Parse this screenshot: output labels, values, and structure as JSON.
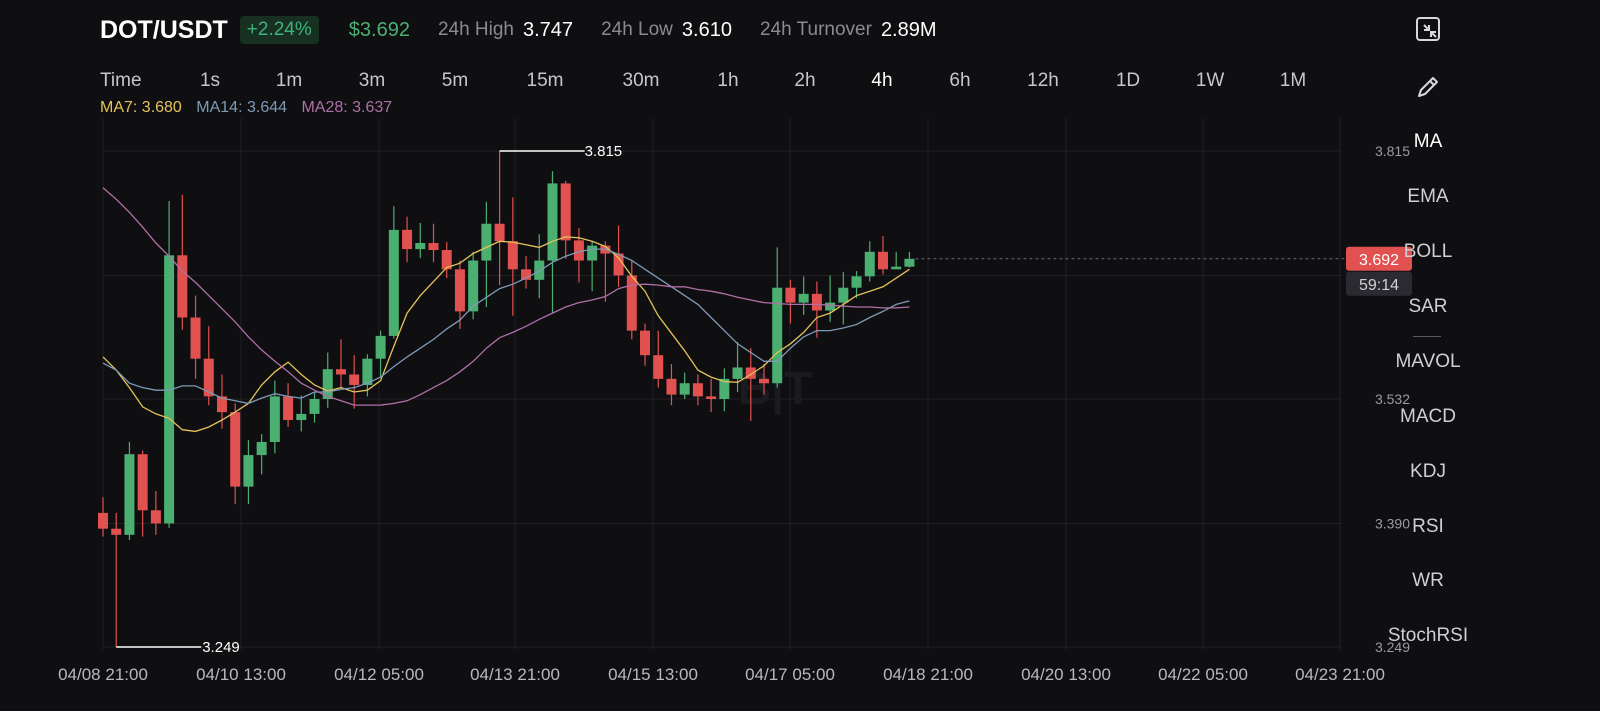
{
  "header": {
    "pair": "DOT/USDT",
    "change": "+2.24%",
    "price": "$3.692",
    "stats": [
      {
        "label": "24h High",
        "value": "3.747"
      },
      {
        "label": "24h Low",
        "value": "3.610"
      },
      {
        "label": "24h Turnover",
        "value": "2.89M"
      }
    ]
  },
  "intervals": [
    "Time",
    "1s",
    "1m",
    "3m",
    "5m",
    "15m",
    "30m",
    "1h",
    "2h",
    "4h",
    "6h",
    "12h",
    "1D",
    "1W",
    "1M"
  ],
  "active_interval": "4h",
  "ma_legend": {
    "ma7": "MA7: 3.680",
    "ma14": "MA14: 3.644",
    "ma28": "MA28: 3.637"
  },
  "sidebar": {
    "indicators": [
      "MA",
      "EMA",
      "BOLL",
      "SAR",
      "MAVOL",
      "MACD",
      "KDJ",
      "RSI",
      "WR",
      "StochRSI"
    ],
    "active": "MA",
    "icons": [
      "collapse-icon",
      "pencil-icon"
    ]
  },
  "colors": {
    "up": "#4caf72",
    "down": "#e0514f",
    "ma7": "#e4c25a",
    "ma14": "#7e9ab6",
    "ma28": "#b06fa6",
    "background": "#0f0f12"
  },
  "chart_data": {
    "type": "candlestick",
    "y_ticks": [
      "3.815",
      "3.532",
      "3.390",
      "3.249"
    ],
    "ylim": [
      3.249,
      3.815
    ],
    "x_ticks": [
      "04/08 21:00",
      "04/10 13:00",
      "04/12 05:00",
      "04/13 21:00",
      "04/15 13:00",
      "04/17 05:00",
      "04/18 21:00",
      "04/20 13:00",
      "04/22 05:00",
      "04/23 21:00"
    ],
    "current_price": "3.692",
    "countdown": "59:14",
    "annotations": {
      "high": "3.815",
      "low": "3.249"
    },
    "candles": [
      {
        "o": 3.402,
        "h": 3.42,
        "l": 3.375,
        "c": 3.384
      },
      {
        "o": 3.384,
        "h": 3.402,
        "l": 3.249,
        "c": 3.377
      },
      {
        "o": 3.377,
        "h": 3.483,
        "l": 3.371,
        "c": 3.469
      },
      {
        "o": 3.469,
        "h": 3.473,
        "l": 3.375,
        "c": 3.405
      },
      {
        "o": 3.405,
        "h": 3.427,
        "l": 3.377,
        "c": 3.39
      },
      {
        "o": 3.39,
        "h": 3.758,
        "l": 3.385,
        "c": 3.696
      },
      {
        "o": 3.696,
        "h": 3.765,
        "l": 3.611,
        "c": 3.625
      },
      {
        "o": 3.625,
        "h": 3.65,
        "l": 3.555,
        "c": 3.578
      },
      {
        "o": 3.578,
        "h": 3.615,
        "l": 3.525,
        "c": 3.535
      },
      {
        "o": 3.535,
        "h": 3.56,
        "l": 3.498,
        "c": 3.517
      },
      {
        "o": 3.517,
        "h": 3.527,
        "l": 3.412,
        "c": 3.432
      },
      {
        "o": 3.432,
        "h": 3.485,
        "l": 3.412,
        "c": 3.468
      },
      {
        "o": 3.468,
        "h": 3.492,
        "l": 3.446,
        "c": 3.483
      },
      {
        "o": 3.483,
        "h": 3.553,
        "l": 3.47,
        "c": 3.535
      },
      {
        "o": 3.535,
        "h": 3.55,
        "l": 3.5,
        "c": 3.508
      },
      {
        "o": 3.508,
        "h": 3.536,
        "l": 3.495,
        "c": 3.515
      },
      {
        "o": 3.515,
        "h": 3.54,
        "l": 3.505,
        "c": 3.532
      },
      {
        "o": 3.532,
        "h": 3.585,
        "l": 3.522,
        "c": 3.566
      },
      {
        "o": 3.566,
        "h": 3.6,
        "l": 3.545,
        "c": 3.56
      },
      {
        "o": 3.56,
        "h": 3.582,
        "l": 3.521,
        "c": 3.548
      },
      {
        "o": 3.548,
        "h": 3.583,
        "l": 3.535,
        "c": 3.578
      },
      {
        "o": 3.578,
        "h": 3.61,
        "l": 3.557,
        "c": 3.604
      },
      {
        "o": 3.604,
        "h": 3.752,
        "l": 3.601,
        "c": 3.725
      },
      {
        "o": 3.725,
        "h": 3.74,
        "l": 3.688,
        "c": 3.703
      },
      {
        "o": 3.703,
        "h": 3.733,
        "l": 3.693,
        "c": 3.71
      },
      {
        "o": 3.71,
        "h": 3.732,
        "l": 3.688,
        "c": 3.702
      },
      {
        "o": 3.702,
        "h": 3.711,
        "l": 3.67,
        "c": 3.68
      },
      {
        "o": 3.68,
        "h": 3.69,
        "l": 3.612,
        "c": 3.632
      },
      {
        "o": 3.632,
        "h": 3.7,
        "l": 3.623,
        "c": 3.69
      },
      {
        "o": 3.69,
        "h": 3.757,
        "l": 3.637,
        "c": 3.732
      },
      {
        "o": 3.732,
        "h": 3.815,
        "l": 3.662,
        "c": 3.712
      },
      {
        "o": 3.712,
        "h": 3.762,
        "l": 3.627,
        "c": 3.68
      },
      {
        "o": 3.68,
        "h": 3.695,
        "l": 3.658,
        "c": 3.668
      },
      {
        "o": 3.668,
        "h": 3.72,
        "l": 3.647,
        "c": 3.69
      },
      {
        "o": 3.69,
        "h": 3.792,
        "l": 3.63,
        "c": 3.778
      },
      {
        "o": 3.778,
        "h": 3.781,
        "l": 3.692,
        "c": 3.713
      },
      {
        "o": 3.713,
        "h": 3.727,
        "l": 3.665,
        "c": 3.69
      },
      {
        "o": 3.69,
        "h": 3.712,
        "l": 3.655,
        "c": 3.707
      },
      {
        "o": 3.707,
        "h": 3.712,
        "l": 3.643,
        "c": 3.698
      },
      {
        "o": 3.698,
        "h": 3.73,
        "l": 3.66,
        "c": 3.673
      },
      {
        "o": 3.673,
        "h": 3.69,
        "l": 3.6,
        "c": 3.61
      },
      {
        "o": 3.61,
        "h": 3.618,
        "l": 3.57,
        "c": 3.582
      },
      {
        "o": 3.582,
        "h": 3.61,
        "l": 3.545,
        "c": 3.555
      },
      {
        "o": 3.555,
        "h": 3.572,
        "l": 3.525,
        "c": 3.537
      },
      {
        "o": 3.537,
        "h": 3.562,
        "l": 3.532,
        "c": 3.55
      },
      {
        "o": 3.55,
        "h": 3.56,
        "l": 3.525,
        "c": 3.535
      },
      {
        "o": 3.535,
        "h": 3.555,
        "l": 3.517,
        "c": 3.532
      },
      {
        "o": 3.532,
        "h": 3.567,
        "l": 3.518,
        "c": 3.555
      },
      {
        "o": 3.555,
        "h": 3.597,
        "l": 3.54,
        "c": 3.568
      },
      {
        "o": 3.568,
        "h": 3.59,
        "l": 3.507,
        "c": 3.555
      },
      {
        "o": 3.555,
        "h": 3.572,
        "l": 3.537,
        "c": 3.55
      },
      {
        "o": 3.55,
        "h": 3.705,
        "l": 3.545,
        "c": 3.659
      },
      {
        "o": 3.659,
        "h": 3.668,
        "l": 3.618,
        "c": 3.642
      },
      {
        "o": 3.642,
        "h": 3.672,
        "l": 3.628,
        "c": 3.652
      },
      {
        "o": 3.652,
        "h": 3.666,
        "l": 3.602,
        "c": 3.633
      },
      {
        "o": 3.633,
        "h": 3.673,
        "l": 3.62,
        "c": 3.642
      },
      {
        "o": 3.642,
        "h": 3.677,
        "l": 3.617,
        "c": 3.659
      },
      {
        "o": 3.659,
        "h": 3.678,
        "l": 3.647,
        "c": 3.672
      },
      {
        "o": 3.672,
        "h": 3.712,
        "l": 3.666,
        "c": 3.7
      },
      {
        "o": 3.7,
        "h": 3.718,
        "l": 3.674,
        "c": 3.68
      },
      {
        "o": 3.68,
        "h": 3.7,
        "l": 3.68,
        "c": 3.683
      },
      {
        "o": 3.683,
        "h": 3.7,
        "l": 3.682,
        "c": 3.692
      }
    ],
    "ma_lines": [
      {
        "name": "MA7",
        "values": [
          3.58,
          3.565,
          3.545,
          3.523,
          3.515,
          3.51,
          3.497,
          3.495,
          3.5,
          3.508,
          3.517,
          3.527,
          3.548,
          3.563,
          3.574,
          3.56,
          3.548,
          3.541,
          3.545,
          3.54,
          3.542,
          3.553,
          3.592,
          3.63,
          3.65,
          3.666,
          3.682,
          3.687,
          3.698,
          3.705,
          3.712,
          3.711,
          3.708,
          3.705,
          3.712,
          3.717,
          3.716,
          3.712,
          3.706,
          3.693,
          3.672,
          3.655,
          3.627,
          3.607,
          3.587,
          3.565,
          3.557,
          3.552,
          3.551,
          3.56,
          3.57,
          3.585,
          3.595,
          3.608,
          3.625,
          3.63,
          3.64,
          3.65,
          3.655,
          3.66,
          3.67,
          3.68
        ]
      },
      {
        "name": "MA14",
        "values": [
          3.573,
          3.565,
          3.55,
          3.545,
          3.542,
          3.542,
          3.547,
          3.547,
          3.54,
          3.533,
          3.53,
          3.527,
          3.533,
          3.538,
          3.535,
          3.533,
          3.54,
          3.54,
          3.543,
          3.545,
          3.55,
          3.557,
          3.569,
          3.58,
          3.59,
          3.6,
          3.612,
          3.622,
          3.638,
          3.648,
          3.658,
          3.663,
          3.67,
          3.678,
          3.688,
          3.695,
          3.7,
          3.703,
          3.703,
          3.697,
          3.69,
          3.68,
          3.67,
          3.66,
          3.65,
          3.64,
          3.625,
          3.61,
          3.595,
          3.585,
          3.575,
          3.575,
          3.59,
          3.603,
          3.61,
          3.61,
          3.613,
          3.617,
          3.625,
          3.632,
          3.64,
          3.644
        ]
      },
      {
        "name": "MA28",
        "values": [
          3.773,
          3.76,
          3.745,
          3.728,
          3.71,
          3.695,
          3.678,
          3.665,
          3.65,
          3.635,
          3.62,
          3.603,
          3.588,
          3.575,
          3.563,
          3.55,
          3.542,
          3.535,
          3.53,
          3.525,
          3.525,
          3.525,
          3.527,
          3.53,
          3.537,
          3.545,
          3.553,
          3.563,
          3.575,
          3.59,
          3.602,
          3.608,
          3.615,
          3.623,
          3.63,
          3.637,
          3.642,
          3.645,
          3.649,
          3.658,
          3.662,
          3.663,
          3.662,
          3.66,
          3.66,
          3.657,
          3.655,
          3.652,
          3.648,
          3.645,
          3.642,
          3.641,
          3.64,
          3.64,
          3.64,
          3.639,
          3.638,
          3.637,
          3.637,
          3.636,
          3.636,
          3.637
        ]
      }
    ]
  }
}
